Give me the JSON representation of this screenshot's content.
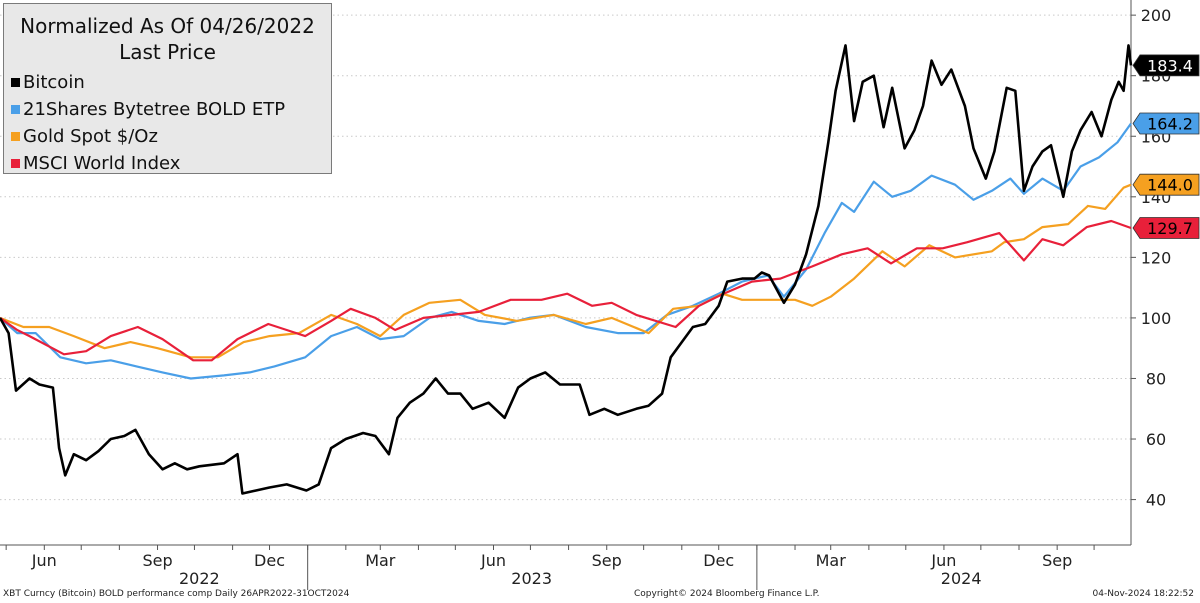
{
  "legend": {
    "title_line1": "Normalized As Of 04/26/2022",
    "title_line2": "Last Price"
  },
  "chart_data": {
    "type": "line",
    "x_range": [
      "2022-04-26",
      "2024-10-31"
    ],
    "ylim": [
      25,
      205
    ],
    "yticks": [
      40,
      60,
      80,
      100,
      120,
      140,
      160,
      180,
      200
    ],
    "y_axis_position": "right",
    "grid": "horizontal dotted",
    "legend_position": "top-left",
    "x_months": [
      {
        "label": "Jun",
        "date": "2022-06-01"
      },
      {
        "label": "Sep",
        "date": "2022-09-01"
      },
      {
        "label": "Dec",
        "date": "2022-12-01"
      },
      {
        "label": "Mar",
        "date": "2023-03-01"
      },
      {
        "label": "Jun",
        "date": "2023-06-01"
      },
      {
        "label": "Sep",
        "date": "2023-09-01"
      },
      {
        "label": "Dec",
        "date": "2023-12-01"
      },
      {
        "label": "Mar",
        "date": "2024-03-01"
      },
      {
        "label": "Jun",
        "date": "2024-06-01"
      },
      {
        "label": "Sep",
        "date": "2024-09-01"
      }
    ],
    "x_years": [
      {
        "label": "2022",
        "date": "2022-10-05"
      },
      {
        "label": "2023",
        "date": "2023-07-02"
      },
      {
        "label": "2024",
        "date": "2024-06-15"
      }
    ],
    "year_boundaries": [
      "2023-01-01",
      "2024-01-01"
    ],
    "series": [
      {
        "name": "Bitcoin",
        "color": "#000000",
        "last": "183.4",
        "points": [
          [
            "2022-04-26",
            100
          ],
          [
            "2022-05-03",
            95
          ],
          [
            "2022-05-09",
            76
          ],
          [
            "2022-05-20",
            80
          ],
          [
            "2022-05-28",
            78
          ],
          [
            "2022-06-08",
            77
          ],
          [
            "2022-06-13",
            57
          ],
          [
            "2022-06-18",
            48
          ],
          [
            "2022-06-25",
            55
          ],
          [
            "2022-07-05",
            53
          ],
          [
            "2022-07-15",
            56
          ],
          [
            "2022-07-25",
            60
          ],
          [
            "2022-08-05",
            61
          ],
          [
            "2022-08-14",
            63
          ],
          [
            "2022-08-25",
            55
          ],
          [
            "2022-09-05",
            50
          ],
          [
            "2022-09-15",
            52
          ],
          [
            "2022-09-25",
            50
          ],
          [
            "2022-10-05",
            51
          ],
          [
            "2022-10-25",
            52
          ],
          [
            "2022-11-05",
            55
          ],
          [
            "2022-11-09",
            42
          ],
          [
            "2022-11-20",
            43
          ],
          [
            "2022-12-01",
            44
          ],
          [
            "2022-12-15",
            45
          ],
          [
            "2022-12-31",
            43
          ],
          [
            "2023-01-10",
            45
          ],
          [
            "2023-01-20",
            57
          ],
          [
            "2023-02-01",
            60
          ],
          [
            "2023-02-15",
            62
          ],
          [
            "2023-02-25",
            61
          ],
          [
            "2023-03-08",
            55
          ],
          [
            "2023-03-15",
            67
          ],
          [
            "2023-03-25",
            72
          ],
          [
            "2023-04-05",
            75
          ],
          [
            "2023-04-15",
            80
          ],
          [
            "2023-04-25",
            75
          ],
          [
            "2023-05-05",
            75
          ],
          [
            "2023-05-15",
            70
          ],
          [
            "2023-05-28",
            72
          ],
          [
            "2023-06-10",
            67
          ],
          [
            "2023-06-21",
            77
          ],
          [
            "2023-07-01",
            80
          ],
          [
            "2023-07-13",
            82
          ],
          [
            "2023-07-25",
            78
          ],
          [
            "2023-08-10",
            78
          ],
          [
            "2023-08-18",
            68
          ],
          [
            "2023-08-30",
            70
          ],
          [
            "2023-09-10",
            68
          ],
          [
            "2023-09-25",
            70
          ],
          [
            "2023-10-05",
            71
          ],
          [
            "2023-10-16",
            75
          ],
          [
            "2023-10-23",
            87
          ],
          [
            "2023-11-01",
            92
          ],
          [
            "2023-11-10",
            97
          ],
          [
            "2023-11-20",
            98
          ],
          [
            "2023-12-01",
            104
          ],
          [
            "2023-12-08",
            112
          ],
          [
            "2023-12-20",
            113
          ],
          [
            "2023-12-30",
            113
          ],
          [
            "2024-01-05",
            115
          ],
          [
            "2024-01-11",
            114
          ],
          [
            "2024-01-23",
            105
          ],
          [
            "2024-02-01",
            111
          ],
          [
            "2024-02-10",
            121
          ],
          [
            "2024-02-20",
            137
          ],
          [
            "2024-02-28",
            158
          ],
          [
            "2024-03-05",
            175
          ],
          [
            "2024-03-13",
            190
          ],
          [
            "2024-03-20",
            165
          ],
          [
            "2024-03-27",
            178
          ],
          [
            "2024-04-05",
            180
          ],
          [
            "2024-04-13",
            163
          ],
          [
            "2024-04-20",
            176
          ],
          [
            "2024-04-30",
            156
          ],
          [
            "2024-05-08",
            162
          ],
          [
            "2024-05-15",
            170
          ],
          [
            "2024-05-22",
            185
          ],
          [
            "2024-05-30",
            177
          ],
          [
            "2024-06-07",
            182
          ],
          [
            "2024-06-18",
            170
          ],
          [
            "2024-06-25",
            156
          ],
          [
            "2024-07-05",
            146
          ],
          [
            "2024-07-12",
            155
          ],
          [
            "2024-07-22",
            176
          ],
          [
            "2024-07-29",
            175
          ],
          [
            "2024-08-05",
            142
          ],
          [
            "2024-08-12",
            150
          ],
          [
            "2024-08-20",
            155
          ],
          [
            "2024-08-27",
            157
          ],
          [
            "2024-09-06",
            140
          ],
          [
            "2024-09-13",
            155
          ],
          [
            "2024-09-20",
            162
          ],
          [
            "2024-09-29",
            168
          ],
          [
            "2024-10-07",
            160
          ],
          [
            "2024-10-15",
            172
          ],
          [
            "2024-10-21",
            178
          ],
          [
            "2024-10-25",
            175
          ],
          [
            "2024-10-29",
            190
          ],
          [
            "2024-10-31",
            183.4
          ]
        ]
      },
      {
        "name": "21Shares Bytetree BOLD ETP",
        "color": "#4a9fe8",
        "last": "164.2",
        "points": [
          [
            "2022-04-26",
            100
          ],
          [
            "2022-05-10",
            95
          ],
          [
            "2022-05-25",
            95
          ],
          [
            "2022-06-14",
            87
          ],
          [
            "2022-07-05",
            85
          ],
          [
            "2022-07-25",
            86
          ],
          [
            "2022-08-15",
            84
          ],
          [
            "2022-09-05",
            82
          ],
          [
            "2022-09-28",
            80
          ],
          [
            "2022-10-25",
            81
          ],
          [
            "2022-11-15",
            82
          ],
          [
            "2022-12-05",
            84
          ],
          [
            "2022-12-30",
            87
          ],
          [
            "2023-01-20",
            94
          ],
          [
            "2023-02-10",
            97
          ],
          [
            "2023-03-01",
            93
          ],
          [
            "2023-03-20",
            94
          ],
          [
            "2023-04-10",
            100
          ],
          [
            "2023-04-28",
            102
          ],
          [
            "2023-05-20",
            99
          ],
          [
            "2023-06-10",
            98
          ],
          [
            "2023-06-30",
            100
          ],
          [
            "2023-07-20",
            101
          ],
          [
            "2023-08-15",
            97
          ],
          [
            "2023-09-10",
            95
          ],
          [
            "2023-10-01",
            95
          ],
          [
            "2023-10-20",
            101
          ],
          [
            "2023-11-10",
            104
          ],
          [
            "2023-12-01",
            108
          ],
          [
            "2023-12-20",
            112
          ],
          [
            "2024-01-10",
            114
          ],
          [
            "2024-01-23",
            107
          ],
          [
            "2024-02-10",
            116
          ],
          [
            "2024-02-25",
            128
          ],
          [
            "2024-03-10",
            138
          ],
          [
            "2024-03-20",
            135
          ],
          [
            "2024-04-05",
            145
          ],
          [
            "2024-04-20",
            140
          ],
          [
            "2024-05-05",
            142
          ],
          [
            "2024-05-22",
            147
          ],
          [
            "2024-06-10",
            144
          ],
          [
            "2024-06-25",
            139
          ],
          [
            "2024-07-10",
            142
          ],
          [
            "2024-07-25",
            146
          ],
          [
            "2024-08-05",
            141
          ],
          [
            "2024-08-20",
            146
          ],
          [
            "2024-09-06",
            142
          ],
          [
            "2024-09-20",
            150
          ],
          [
            "2024-10-05",
            153
          ],
          [
            "2024-10-20",
            158
          ],
          [
            "2024-10-31",
            164.2
          ]
        ]
      },
      {
        "name": "Gold Spot $/Oz",
        "color": "#f5a020",
        "last": "144.0",
        "points": [
          [
            "2022-04-26",
            100
          ],
          [
            "2022-05-15",
            97
          ],
          [
            "2022-06-05",
            97
          ],
          [
            "2022-06-25",
            94
          ],
          [
            "2022-07-20",
            90
          ],
          [
            "2022-08-10",
            92
          ],
          [
            "2022-09-01",
            90
          ],
          [
            "2022-09-28",
            87
          ],
          [
            "2022-10-20",
            87
          ],
          [
            "2022-11-10",
            92
          ],
          [
            "2022-12-01",
            94
          ],
          [
            "2022-12-25",
            95
          ],
          [
            "2023-01-20",
            101
          ],
          [
            "2023-02-10",
            98
          ],
          [
            "2023-03-01",
            94
          ],
          [
            "2023-03-20",
            101
          ],
          [
            "2023-04-10",
            105
          ],
          [
            "2023-05-05",
            106
          ],
          [
            "2023-05-25",
            101
          ],
          [
            "2023-06-20",
            99
          ],
          [
            "2023-07-20",
            101
          ],
          [
            "2023-08-15",
            98
          ],
          [
            "2023-09-05",
            100
          ],
          [
            "2023-10-05",
            95
          ],
          [
            "2023-10-25",
            103
          ],
          [
            "2023-11-15",
            104
          ],
          [
            "2023-12-04",
            108
          ],
          [
            "2023-12-20",
            106
          ],
          [
            "2024-01-10",
            106
          ],
          [
            "2024-02-01",
            106
          ],
          [
            "2024-02-15",
            104
          ],
          [
            "2024-03-01",
            107
          ],
          [
            "2024-03-20",
            113
          ],
          [
            "2024-04-12",
            122
          ],
          [
            "2024-04-30",
            117
          ],
          [
            "2024-05-20",
            124
          ],
          [
            "2024-06-10",
            120
          ],
          [
            "2024-07-10",
            122
          ],
          [
            "2024-07-20",
            125
          ],
          [
            "2024-08-05",
            126
          ],
          [
            "2024-08-20",
            130
          ],
          [
            "2024-09-10",
            131
          ],
          [
            "2024-09-26",
            137
          ],
          [
            "2024-10-10",
            136
          ],
          [
            "2024-10-25",
            143
          ],
          [
            "2024-10-31",
            144.0
          ]
        ]
      },
      {
        "name": "MSCI World Index",
        "color": "#e8203a",
        "last": "129.7",
        "points": [
          [
            "2022-04-26",
            100
          ],
          [
            "2022-05-10",
            96
          ],
          [
            "2022-05-20",
            94
          ],
          [
            "2022-06-17",
            88
          ],
          [
            "2022-07-05",
            89
          ],
          [
            "2022-07-25",
            94
          ],
          [
            "2022-08-16",
            97
          ],
          [
            "2022-09-05",
            93
          ],
          [
            "2022-09-30",
            86
          ],
          [
            "2022-10-15",
            86
          ],
          [
            "2022-11-05",
            93
          ],
          [
            "2022-11-30",
            98
          ],
          [
            "2022-12-15",
            96
          ],
          [
            "2022-12-30",
            94
          ],
          [
            "2023-01-20",
            99
          ],
          [
            "2023-02-05",
            103
          ],
          [
            "2023-02-25",
            100
          ],
          [
            "2023-03-13",
            96
          ],
          [
            "2023-04-05",
            100
          ],
          [
            "2023-04-28",
            101
          ],
          [
            "2023-05-20",
            102
          ],
          [
            "2023-06-15",
            106
          ],
          [
            "2023-07-10",
            106
          ],
          [
            "2023-07-31",
            108
          ],
          [
            "2023-08-20",
            104
          ],
          [
            "2023-09-05",
            105
          ],
          [
            "2023-09-25",
            101
          ],
          [
            "2023-10-27",
            97
          ],
          [
            "2023-11-15",
            104
          ],
          [
            "2023-12-05",
            108
          ],
          [
            "2023-12-28",
            112
          ],
          [
            "2024-01-20",
            113
          ],
          [
            "2024-02-15",
            117
          ],
          [
            "2024-03-10",
            121
          ],
          [
            "2024-03-31",
            123
          ],
          [
            "2024-04-19",
            118
          ],
          [
            "2024-05-10",
            123
          ],
          [
            "2024-05-31",
            123
          ],
          [
            "2024-06-20",
            125
          ],
          [
            "2024-07-16",
            128
          ],
          [
            "2024-07-25",
            124
          ],
          [
            "2024-08-05",
            119
          ],
          [
            "2024-08-20",
            126
          ],
          [
            "2024-09-06",
            124
          ],
          [
            "2024-09-25",
            130
          ],
          [
            "2024-10-15",
            132
          ],
          [
            "2024-10-31",
            129.7
          ]
        ]
      }
    ]
  },
  "footer": {
    "left": "XBT Curncy (Bitcoin) BOLD performance comp  Daily 26APR2022-31OCT2024",
    "center": "Copyright© 2024 Bloomberg Finance L.P.",
    "right": "04-Nov-2024 18:22:52"
  }
}
